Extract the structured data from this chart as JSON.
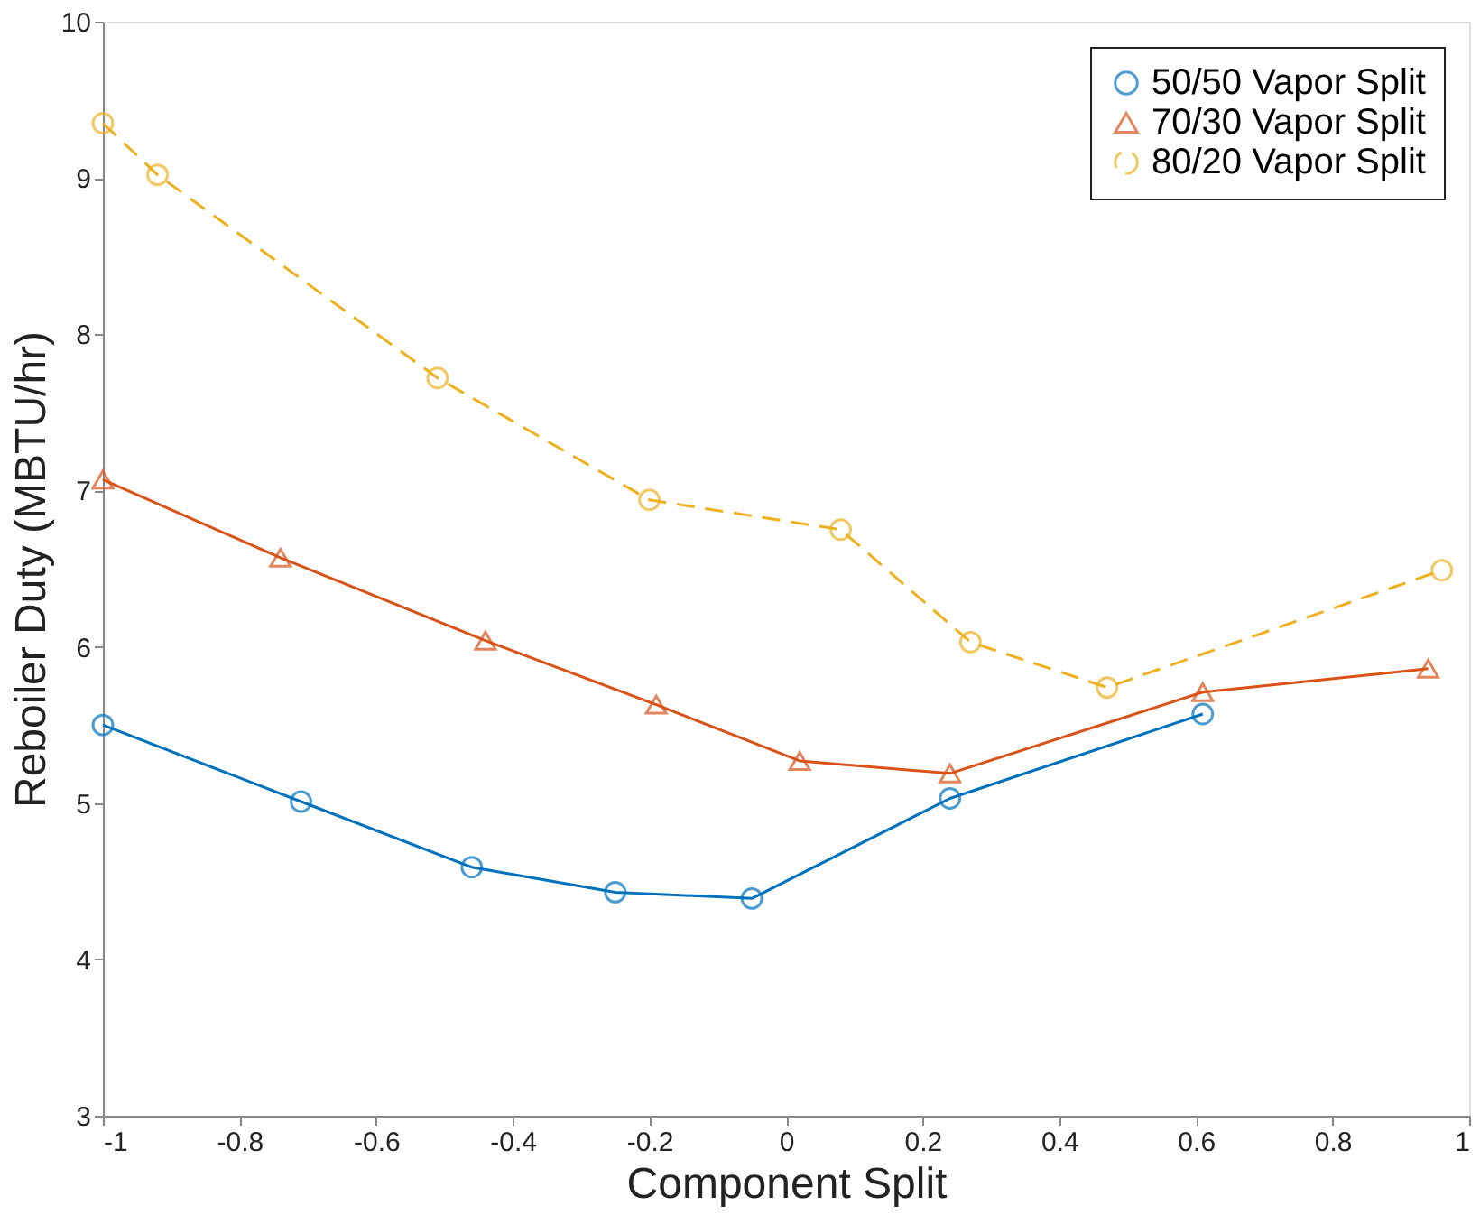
{
  "chart_data": {
    "type": "line",
    "xlabel": "Component Split",
    "ylabel": "Reboiler Duty (MBTU/hr)",
    "xlim": [
      -1,
      1
    ],
    "xticks": [
      -1,
      -0.8,
      -0.6,
      -0.4,
      -0.2,
      0,
      0.2,
      0.4,
      0.6,
      0.8,
      1
    ],
    "ylim": [
      3,
      10
    ],
    "yticks": [
      3,
      4,
      5,
      6,
      7,
      8,
      9,
      10
    ],
    "grid": false,
    "legend": "top right",
    "series": [
      {
        "name": "50/50 Vapor Split",
        "color": "#0072bd",
        "marker": "circle",
        "line_style": "solid",
        "x": [
          -1,
          -0.71,
          -0.46,
          -0.25,
          -0.05,
          0.24,
          0.61
        ],
        "values": [
          5.5,
          5.01,
          4.59,
          4.43,
          4.39,
          5.03,
          5.57
        ]
      },
      {
        "name": "70/30 Vapor Split",
        "color": "#d95319",
        "marker": "triangle",
        "line_style": "solid",
        "x": [
          -1,
          -0.74,
          -0.44,
          -0.19,
          0.02,
          0.24,
          0.61,
          0.94
        ],
        "values": [
          7.07,
          6.57,
          6.04,
          5.63,
          5.27,
          5.19,
          5.71,
          5.86
        ]
      },
      {
        "name": "80/20 Vapor Split",
        "color": "#edb120",
        "marker": "circle",
        "line_style": "dashed",
        "x": [
          -1,
          -0.92,
          -0.51,
          -0.2,
          0.08,
          0.27,
          0.47,
          0.96
        ],
        "values": [
          9.35,
          9.02,
          7.72,
          6.94,
          6.75,
          6.03,
          5.74,
          6.49
        ]
      }
    ]
  }
}
